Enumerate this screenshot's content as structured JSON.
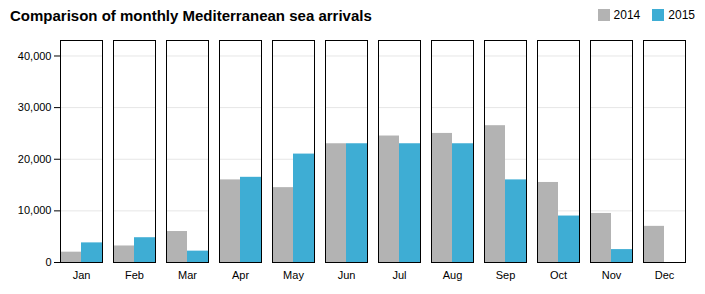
{
  "chart_data": {
    "type": "bar",
    "title": "Comparison of monthly Mediterranean sea arrivals",
    "categories": [
      "Jan",
      "Feb",
      "Mar",
      "Apr",
      "May",
      "Jun",
      "Jul",
      "Aug",
      "Sep",
      "Oct",
      "Nov",
      "Dec"
    ],
    "series": [
      {
        "name": "2014",
        "color": "#b3b3b3",
        "values": [
          2000,
          3200,
          6000,
          16000,
          14500,
          23000,
          24500,
          25000,
          26500,
          15500,
          9500,
          7000
        ]
      },
      {
        "name": "2015",
        "color": "#3eadd4",
        "values": [
          3800,
          4800,
          2200,
          16500,
          21000,
          23000,
          23000,
          23000,
          16000,
          9000,
          2500,
          0
        ]
      }
    ],
    "ylim": [
      0,
      43000
    ],
    "yticks": [
      0,
      {
        "value": 10000,
        "label": "10,000"
      },
      {
        "value": 20000,
        "label": "20,000"
      },
      {
        "value": 30000,
        "label": "30,000"
      },
      {
        "value": 40000,
        "label": "40,000"
      }
    ],
    "grid": true,
    "legend": "top right"
  }
}
